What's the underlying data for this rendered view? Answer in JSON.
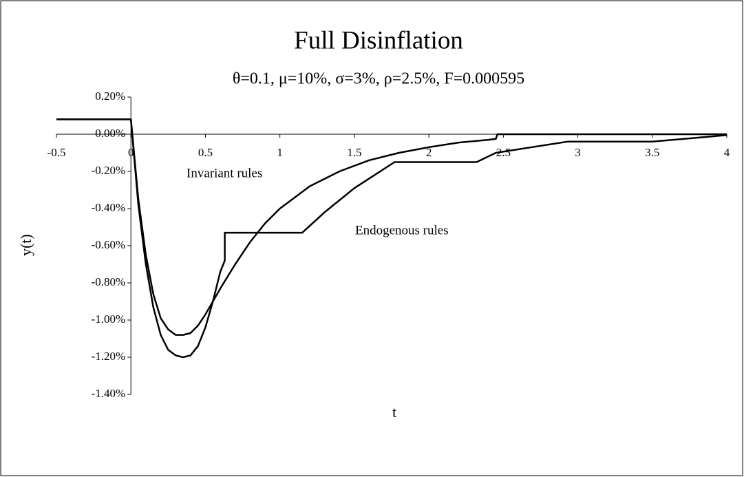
{
  "chart_data": {
    "type": "line",
    "title": "Full Disinflation",
    "subtitle": "θ=0.1, μ=10%, σ=3%, ρ=2.5%, F=0.000595",
    "xlabel": "t",
    "ylabel": "y(t)",
    "xlim": [
      -0.5,
      4
    ],
    "xticks": [
      -0.5,
      0,
      0.5,
      1,
      1.5,
      2,
      2.5,
      3,
      3.5,
      4
    ],
    "ylim": [
      -1.4,
      0.2
    ],
    "yticks": [
      {
        "value": 0.2,
        "label": "0.20%"
      },
      {
        "value": 0,
        "label": "0.00%"
      },
      {
        "value": -0.2,
        "label": "-0.20%"
      },
      {
        "value": -0.4,
        "label": "-0.40%"
      },
      {
        "value": -0.6,
        "label": "-0.60%"
      },
      {
        "value": -0.8,
        "label": "-0.80%"
      },
      {
        "value": -1.0,
        "label": "-1.00%"
      },
      {
        "value": -1.2,
        "label": "-1.20%"
      },
      {
        "value": -1.4,
        "label": "-1.40%"
      }
    ],
    "grid": false,
    "series": [
      {
        "name": "Invariant rules",
        "color": "#000000",
        "x": [
          -0.5,
          0,
          0.05,
          0.1,
          0.15,
          0.2,
          0.25,
          0.3,
          0.35,
          0.4,
          0.45,
          0.5,
          0.55,
          0.6,
          0.7,
          0.8,
          0.9,
          1.0,
          1.2,
          1.4,
          1.6,
          1.8,
          2.0,
          2.2,
          2.4,
          2.45,
          2.46,
          3,
          3.5,
          4
        ],
        "values": [
          0.08,
          0.08,
          -0.35,
          -0.65,
          -0.86,
          -0.99,
          -1.05,
          -1.08,
          -1.08,
          -1.07,
          -1.03,
          -0.97,
          -0.9,
          -0.83,
          -0.7,
          -0.58,
          -0.48,
          -0.4,
          -0.28,
          -0.2,
          -0.14,
          -0.1,
          -0.07,
          -0.045,
          -0.03,
          -0.025,
          0,
          0,
          0,
          0
        ]
      },
      {
        "name": "Endogenous rules",
        "color": "#000000",
        "x": [
          -0.5,
          0,
          0.05,
          0.1,
          0.15,
          0.2,
          0.25,
          0.3,
          0.35,
          0.4,
          0.45,
          0.5,
          0.55,
          0.6,
          0.63,
          0.63,
          1.15,
          1.3,
          1.5,
          1.77,
          2.32,
          2.45,
          2.93,
          3.5,
          4
        ],
        "values": [
          0.08,
          0.08,
          -0.38,
          -0.7,
          -0.93,
          -1.08,
          -1.16,
          -1.19,
          -1.2,
          -1.19,
          -1.14,
          -1.04,
          -0.9,
          -0.74,
          -0.68,
          -0.53,
          -0.53,
          -0.42,
          -0.29,
          -0.15,
          -0.15,
          -0.1,
          -0.04,
          -0.04,
          -0.005
        ]
      }
    ]
  }
}
